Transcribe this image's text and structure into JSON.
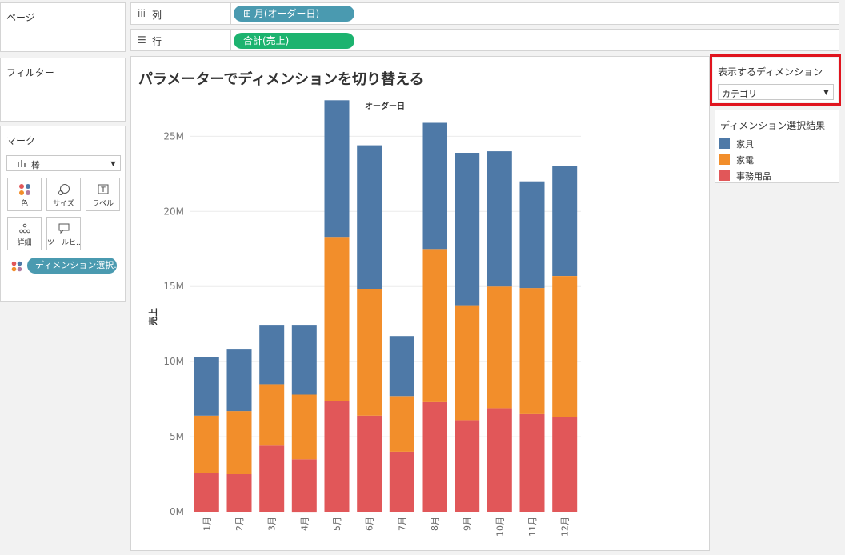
{
  "pages_panel": {
    "title": "ページ"
  },
  "filters_panel": {
    "title": "フィルター"
  },
  "marks_panel": {
    "title": "マーク",
    "mark_type": "棒",
    "buttons": {
      "color": "色",
      "size": "サイズ",
      "label": "ラベル",
      "detail": "詳細",
      "tooltip": "ツールヒ..."
    },
    "color_pill": "ディメンション選択.."
  },
  "columns_shelf": {
    "label": "列",
    "pill": "⊞ 月(オーダー日)"
  },
  "rows_shelf": {
    "label": "行",
    "pill": "合計(売上)"
  },
  "worksheet": {
    "title": "パラメーターでディメンションを切り替える"
  },
  "parameter": {
    "title": "表示するディメンション",
    "value": "カテゴリ"
  },
  "legend": {
    "title": "ディメンション選択結果",
    "items": [
      {
        "label": "家具",
        "color": "#4e79a7"
      },
      {
        "label": "家電",
        "color": "#f28e2b"
      },
      {
        "label": "事務用品",
        "color": "#e15759"
      }
    ]
  },
  "chart_data": {
    "type": "bar",
    "stacked": true,
    "x_header": "オーダー日",
    "ylabel": "売上",
    "categories": [
      "1月",
      "2月",
      "3月",
      "4月",
      "5月",
      "6月",
      "7月",
      "8月",
      "9月",
      "10月",
      "11月",
      "12月"
    ],
    "series": [
      {
        "name": "事務用品",
        "color": "#e15759",
        "values": [
          2.6,
          2.5,
          4.4,
          3.5,
          7.4,
          6.4,
          4.0,
          7.3,
          6.1,
          6.9,
          6.5,
          6.3
        ]
      },
      {
        "name": "家電",
        "color": "#f28e2b",
        "values": [
          3.8,
          4.2,
          4.1,
          4.3,
          10.9,
          8.4,
          3.7,
          10.2,
          7.6,
          8.1,
          8.4,
          9.4
        ]
      },
      {
        "name": "家具",
        "color": "#4e79a7",
        "values": [
          3.9,
          4.1,
          3.9,
          4.6,
          9.1,
          9.6,
          4.0,
          8.4,
          10.2,
          9.0,
          7.1,
          7.3
        ]
      }
    ],
    "unit": "M",
    "ylim": [
      0,
      28
    ],
    "yticks": [
      0,
      5,
      10,
      15,
      20,
      25
    ],
    "ytick_labels": [
      "0M",
      "5M",
      "10M",
      "15M",
      "20M",
      "25M"
    ],
    "grid": true
  }
}
